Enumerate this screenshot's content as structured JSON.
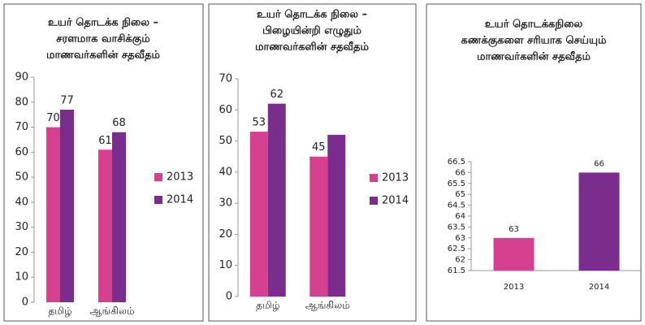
{
  "chart_data": [
    {
      "type": "bar",
      "title": [
        "உயர் தொடக்க நிலை –",
        "சரளமாக வாசிக்கும்",
        "மாணவர்களின் சதவீதம்"
      ],
      "categories": [
        "தமிழ்",
        "ஆங்கிலம்"
      ],
      "series": [
        {
          "name": "2013",
          "color": "#d6418f",
          "values": [
            70,
            61
          ]
        },
        {
          "name": "2014",
          "color": "#7b2d8e",
          "values": [
            77,
            68
          ]
        }
      ],
      "ylim": [
        0,
        90
      ],
      "yticks": [
        0,
        10,
        20,
        30,
        40,
        50,
        60,
        70,
        80,
        90
      ],
      "grid": false,
      "legend": "right"
    },
    {
      "type": "bar",
      "title": [
        "உயர் தொடக்க நிலை –",
        "பிழையின்றி எழுதும்",
        "மாணவர்களின் சதவீதம்"
      ],
      "categories": [
        "தமிழ்",
        "ஆங்கிலம்"
      ],
      "series": [
        {
          "name": "2013",
          "color": "#d6418f",
          "values": [
            53,
            45
          ]
        },
        {
          "name": "2014",
          "color": "#7b2d8e",
          "values": [
            62,
            52
          ],
          "value_labels": [
            62,
            null
          ]
        }
      ],
      "ylim": [
        0,
        70
      ],
      "yticks": [
        0,
        10,
        20,
        30,
        40,
        50,
        60,
        70
      ],
      "grid": false,
      "legend": "right"
    },
    {
      "type": "bar",
      "title": [
        "உயர் தொடக்கநிலை",
        "கணக்குகளை சரியாக செய்யும்",
        "மாணவர்களின் சதவீதம்"
      ],
      "categories": [
        "2013",
        "2014"
      ],
      "values": [
        63,
        66
      ],
      "colors": [
        "#d6418f",
        "#7b2d8e"
      ],
      "ylim": [
        61.5,
        66.5
      ],
      "yticks": [
        61.5,
        62,
        62.5,
        63,
        63.5,
        64,
        64.5,
        65,
        65.5,
        66,
        66.5
      ],
      "grid": false
    }
  ]
}
